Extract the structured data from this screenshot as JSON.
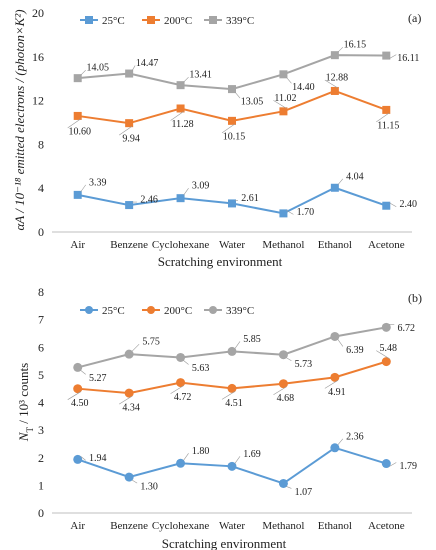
{
  "chart_data": [
    {
      "type": "line",
      "panel": "(a)",
      "title": "",
      "categories": [
        "Air",
        "Benzene",
        "Cyclohexane",
        "Water",
        "Methanol",
        "Ethanol",
        "Acetone"
      ],
      "xlabel": "Scratching environment",
      "ylabel": "αA / 10⁻¹⁸ emitted electrons / (photon×K²)",
      "ylim": [
        0,
        20
      ],
      "yticks": [
        0,
        4,
        8,
        12,
        16,
        20
      ],
      "marker": "square",
      "legend_position": "top-left",
      "grid": false,
      "series": [
        {
          "name": "25°C",
          "color": "#5B9BD5",
          "values": [
            3.39,
            2.46,
            3.09,
            2.61,
            1.7,
            4.04,
            2.4
          ]
        },
        {
          "name": "200°C",
          "color": "#ED7D31",
          "values": [
            10.6,
            9.94,
            11.28,
            10.15,
            11.02,
            12.88,
            11.15
          ]
        },
        {
          "name": "339°C",
          "color": "#A5A5A5",
          "values": [
            14.05,
            14.47,
            13.41,
            13.05,
            14.4,
            16.15,
            16.11
          ]
        }
      ],
      "data_labels": [
        [
          "3.39",
          "2.46",
          "3.09",
          "2.61",
          "1.70",
          "4.04",
          "2.40"
        ],
        [
          "10.60",
          "9.94",
          "11.28",
          "10.15",
          "11.02",
          "12.88",
          "11.15"
        ],
        [
          "14.05",
          "14.47",
          "13.41",
          "13.05",
          "14.40",
          "16.15",
          "16.11"
        ]
      ]
    },
    {
      "type": "line",
      "panel": "(b)",
      "title": "",
      "categories": [
        "Air",
        "Benzene",
        "Cyclohexane",
        "Water",
        "Methanol",
        "Ethanol",
        "Acetone"
      ],
      "xlabel": "Scratching environment",
      "ylabel": "N_T / 10³ counts",
      "ylim": [
        0,
        8
      ],
      "yticks": [
        0,
        1,
        2,
        3,
        4,
        5,
        6,
        7,
        8
      ],
      "marker": "circle",
      "legend_position": "top-left",
      "grid": false,
      "series": [
        {
          "name": "25°C",
          "color": "#5B9BD5",
          "values": [
            1.94,
            1.3,
            1.8,
            1.69,
            1.07,
            2.36,
            1.79
          ]
        },
        {
          "name": "200°C",
          "color": "#ED7D31",
          "values": [
            4.5,
            4.34,
            4.72,
            4.51,
            4.68,
            4.91,
            5.48
          ]
        },
        {
          "name": "339°C",
          "color": "#A5A5A5",
          "values": [
            5.27,
            5.75,
            5.63,
            5.85,
            5.73,
            6.39,
            6.72
          ]
        }
      ],
      "data_labels": [
        [
          "1.94",
          "1.30",
          "1.80",
          "1.69",
          "1.07",
          "2.36",
          "1.79"
        ],
        [
          "4.50",
          "4.34",
          "4.72",
          "4.51",
          "4.68",
          "4.91",
          "5.48"
        ],
        [
          "5.27",
          "5.75",
          "5.63",
          "5.85",
          "5.73",
          "6.39",
          "6.72"
        ]
      ]
    }
  ]
}
